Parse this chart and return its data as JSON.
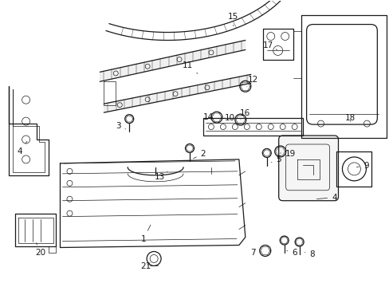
{
  "bg_color": "#ffffff",
  "fig_width": 4.89,
  "fig_height": 3.6,
  "dpi": 100,
  "line_color": "#1a1a1a",
  "label_fontsize": 7.5,
  "label_fontsize_small": 6.5,
  "lw_main": 0.9,
  "lw_thin": 0.5,
  "lw_thick": 1.2
}
